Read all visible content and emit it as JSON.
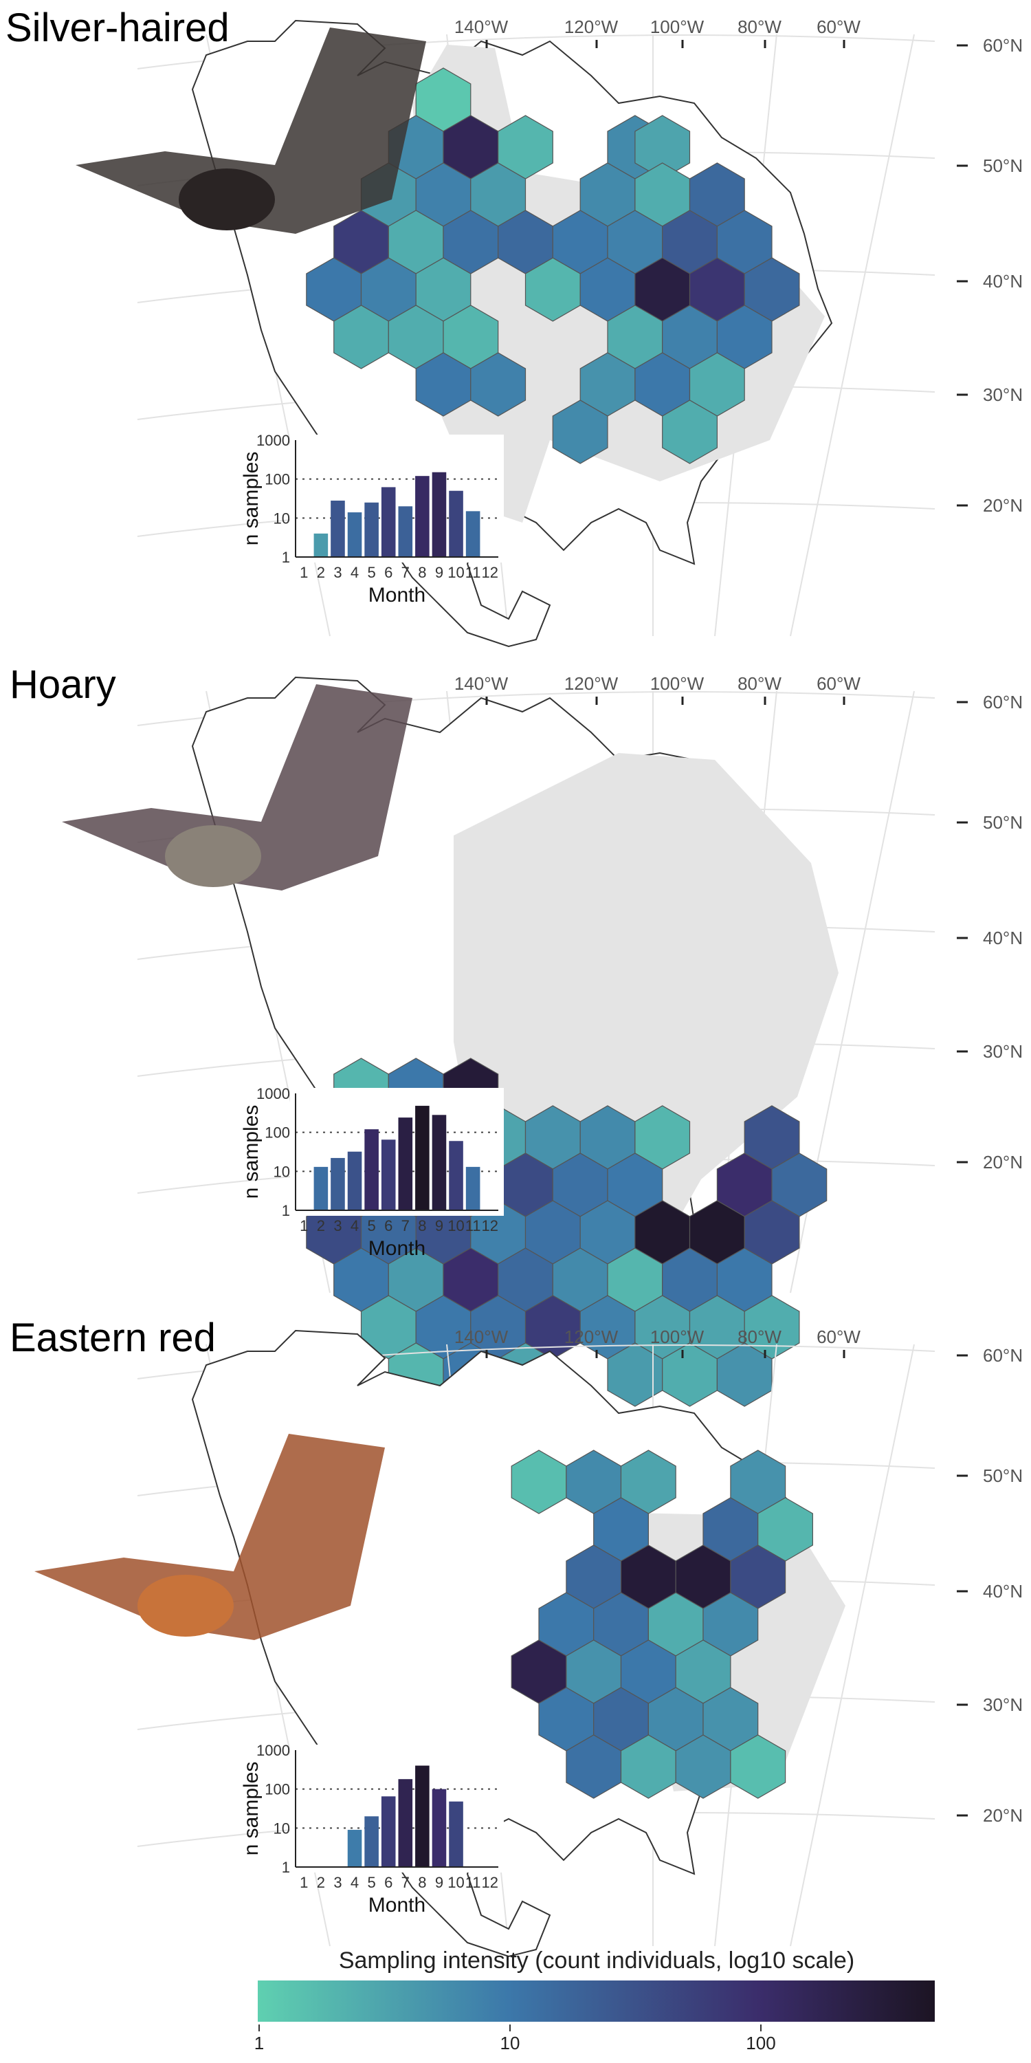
{
  "colors": {
    "low": "#5fd0b0",
    "mid": "#3c78aa",
    "high": "#3b2d6b",
    "max": "#1c1423",
    "range_fill": "#e4e4e4",
    "land_stroke": "#333333"
  },
  "map_axes": {
    "lon_labels": [
      "140°W",
      "120°W",
      "100°W",
      "80°W",
      "60°W"
    ],
    "lat_labels": [
      "60°N",
      "50°N",
      "40°N",
      "30°N",
      "20°N"
    ]
  },
  "legend": {
    "title": "Sampling intensity (count individuals, log10 scale)",
    "ticks": [
      "1",
      "10",
      "100"
    ]
  },
  "chart_data": [
    {
      "type": "bar",
      "title": "Silver-haired",
      "categories": [
        "1",
        "2",
        "3",
        "4",
        "5",
        "6",
        "7",
        "8",
        "9",
        "10",
        "11",
        "12"
      ],
      "values": [
        null,
        4,
        28,
        14,
        25,
        62,
        20,
        120,
        150,
        50,
        15,
        null
      ],
      "xlabel": "Month",
      "ylabel": "n samples",
      "yscale": "log10",
      "ylim": [
        1,
        1000
      ],
      "yticks": [
        "1",
        "10",
        "100",
        "1000"
      ]
    },
    {
      "type": "bar",
      "title": "Hoary",
      "categories": [
        "1",
        "2",
        "3",
        "4",
        "5",
        "6",
        "7",
        "8",
        "9",
        "10",
        "11",
        "12"
      ],
      "values": [
        null,
        13,
        22,
        32,
        120,
        65,
        240,
        480,
        280,
        60,
        13,
        null
      ],
      "xlabel": "Month",
      "ylabel": "n samples",
      "yscale": "log10",
      "ylim": [
        1,
        1000
      ],
      "yticks": [
        "1",
        "10",
        "100",
        "1000"
      ]
    },
    {
      "type": "bar",
      "title": "Eastern red",
      "categories": [
        "1",
        "2",
        "3",
        "4",
        "5",
        "6",
        "7",
        "8",
        "9",
        "10",
        "11",
        "12"
      ],
      "values": [
        null,
        null,
        null,
        9,
        20,
        65,
        180,
        400,
        100,
        48,
        null,
        null
      ],
      "xlabel": "Month",
      "ylabel": "n samples",
      "yscale": "log10",
      "ylim": [
        1,
        1000
      ],
      "yticks": [
        "1",
        "10",
        "100",
        "1000"
      ]
    }
  ]
}
